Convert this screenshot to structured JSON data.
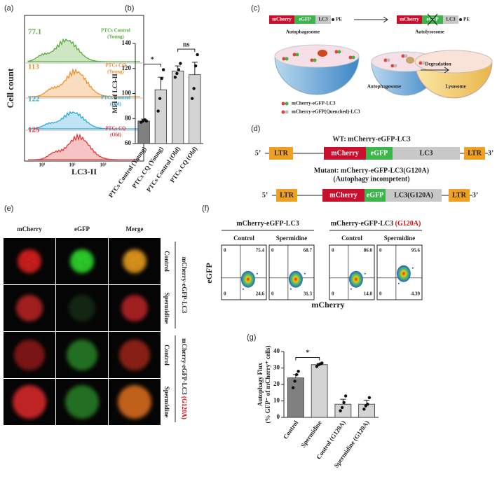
{
  "panel_labels": [
    "(a)",
    "(b)",
    "(c)",
    "(d)",
    "(e)",
    "(f)",
    "(g)"
  ],
  "histogram": {
    "y_label": "Cell count",
    "x_label": "LC3-II",
    "x_ticks": [
      "10¹",
      "10²",
      "10³"
    ],
    "samples": [
      {
        "value": 77.1,
        "name": "PTCs Control",
        "group": "(Young)",
        "color": "#5aab3c"
      },
      {
        "value": 113,
        "name": "PTCs CQ",
        "group": "(Young)",
        "color": "#f0902a"
      },
      {
        "value": 122,
        "name": "PTCs Control",
        "group": "(Old)",
        "color": "#2ea7d8"
      },
      {
        "value": 125,
        "name": "PTCs CQ",
        "group": "(Old)",
        "color": "#e03a3a"
      }
    ]
  },
  "chart_data": [
    {
      "type": "bar",
      "y_label": "MFI of LC3-II",
      "categories": [
        "PTCs Control (Young)",
        "PTCs CQ (Young)",
        "PTCs Control (Old)",
        "PTCs CQ (Old)"
      ],
      "values": [
        78,
        103,
        118,
        115
      ],
      "errors": [
        1.5,
        10,
        4,
        10
      ],
      "points": [
        [
          77,
          78,
          79,
          78
        ],
        [
          86,
          96,
          112,
          119
        ],
        [
          113,
          116,
          119,
          124
        ],
        [
          96,
          104,
          122,
          131
        ]
      ],
      "colors": [
        "#808080",
        "#d4d4d4",
        "#d4d4d4",
        "#d4d4d4"
      ],
      "ylim": [
        60,
        140
      ],
      "yticks": [
        60,
        80,
        100,
        120,
        140
      ],
      "annotations": [
        "*",
        "ns"
      ]
    },
    {
      "type": "bar",
      "y_label": [
        "Autophagy Flux",
        "(% GFP⁻ of mCherry⁺ cells)"
      ],
      "categories": [
        "Control",
        "Spermidine",
        "Control (G120A)",
        "Spermidine (G120A)"
      ],
      "values": [
        24,
        32,
        8,
        8
      ],
      "errors": [
        2,
        0.7,
        3,
        2.5
      ],
      "points": [
        [
          18,
          22,
          26,
          28
        ],
        [
          31,
          32,
          32.5,
          33
        ],
        [
          4,
          6,
          9,
          13
        ],
        [
          5,
          7,
          8,
          12
        ]
      ],
      "colors": [
        "#808080",
        "#d4d4d4",
        "#d4d4d4",
        "#d4d4d4"
      ],
      "ylim": [
        0,
        40
      ],
      "yticks": [
        0,
        10,
        20,
        30,
        40
      ],
      "annotations": [
        "*"
      ]
    }
  ],
  "schematic": {
    "left": {
      "segments": [
        "mCherry",
        "eGFP",
        "LC3"
      ],
      "tail": "PE",
      "caption": "Autophagosome"
    },
    "right": {
      "segments": [
        "mCherry",
        "eGFP",
        "LC3"
      ],
      "tail": "PE",
      "caption": "Autolysosome"
    },
    "vesicles": [
      "Autophagosome",
      "Lysosome"
    ],
    "process": "Degradation",
    "legend": [
      "mCherry-eGFP-LC3",
      "mCherry-eGFP(Quenched)-LC3"
    ]
  },
  "constructs": [
    {
      "title": "WT: mCherry-eGFP-LC3",
      "parts": [
        "5’",
        "LTR",
        "mCherry",
        "eGFP",
        "LC3",
        "LTR",
        "3’"
      ]
    },
    {
      "title": "Mutant: mCherry-eGFP-LC3(G120A)",
      "subtitle": "(Autophagy incompetent)",
      "parts": [
        "5’",
        "LTR",
        "mCherry",
        "eGFP",
        "LC3(G120A)",
        "LTR",
        "3’"
      ]
    }
  ],
  "imaging": {
    "columns": [
      "mCherry",
      "eGFP",
      "Merge"
    ],
    "rows": [
      "Control",
      "Spermidine",
      "Control",
      "Spermidine"
    ],
    "groups": [
      {
        "name": "mCherry-eGFP-LC3"
      },
      {
        "name": "mCherry-eGFP-LC3 ",
        "highlight": "(G120A)"
      }
    ]
  },
  "flow": {
    "y_label": "eGFP",
    "x_label": "mCherry",
    "groups": [
      {
        "name": "mCherry-eGFP-LC3",
        "conditions": [
          "Control",
          "Spermidine"
        ]
      },
      {
        "name": "mCherry-eGFP-LC3 ",
        "highlight": "(G120A)",
        "conditions": [
          "Control",
          "Spermidine"
        ]
      }
    ],
    "plots": [
      {
        "quadrants": [
          0,
          75.4,
          0,
          24.6
        ]
      },
      {
        "quadrants": [
          0,
          68.7,
          0,
          31.3
        ]
      },
      {
        "quadrants": [
          0,
          {
            "value": 86,
            "label": "86.0"
          },
          0,
          {
            "value": 14,
            "label": "14.0"
          }
        ]
      },
      {
        "quadrants": [
          0,
          95.6,
          0,
          4.39
        ]
      }
    ]
  }
}
